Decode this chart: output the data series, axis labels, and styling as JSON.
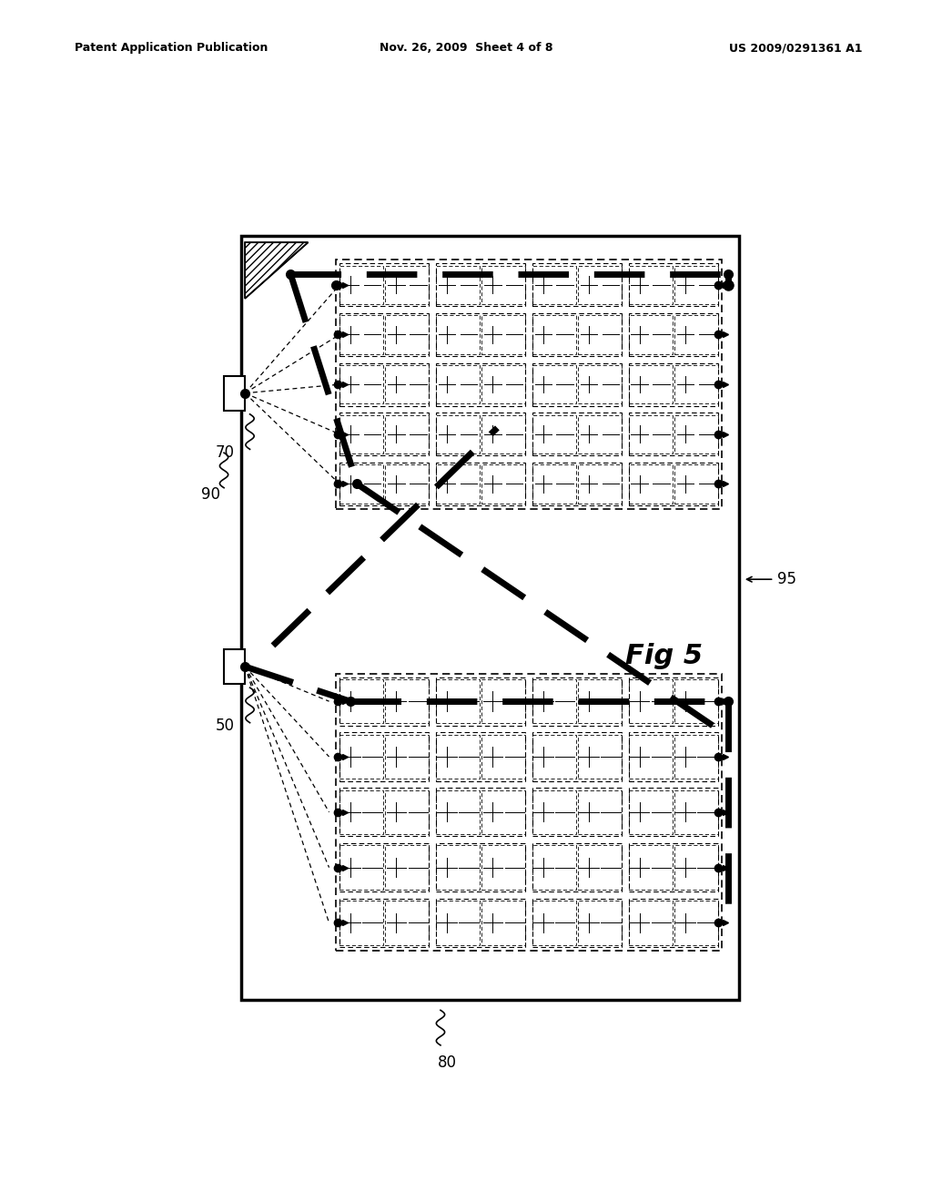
{
  "title_left": "Patent Application Publication",
  "title_center": "Nov. 26, 2009  Sheet 4 of 8",
  "title_right": "US 2009/0291361 A1",
  "fig_label": "Fig 5",
  "background": "#ffffff",
  "label_90": "90",
  "label_70": "70",
  "label_50": "50",
  "label_80": "80",
  "label_95": "95",
  "n_rows": 5,
  "n_cols": 4
}
